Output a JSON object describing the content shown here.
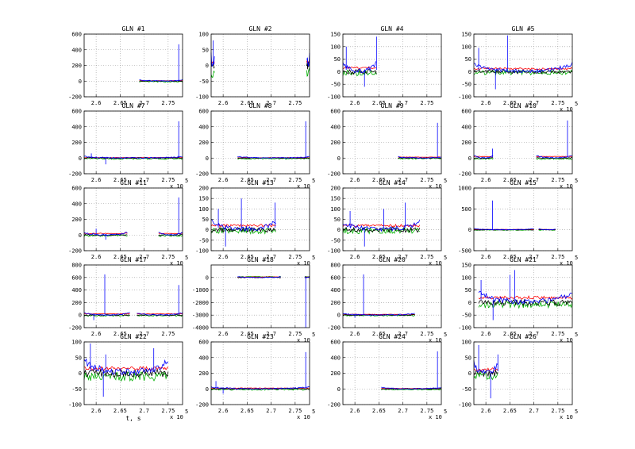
{
  "figure": {
    "xlim": [
      2.575,
      2.78
    ],
    "xticks": [
      "2.6",
      "2.65",
      "2.7",
      "2.75"
    ],
    "xtick_values": [
      2.6,
      2.65,
      2.7,
      2.75
    ],
    "multiplier_base": "x 10",
    "multiplier_exp": "5",
    "xlabel": "t, s",
    "colors": {
      "blue": "#0000ff",
      "red": "#ff0000",
      "green": "#00b000",
      "black": "#000000",
      "grid": "#999999"
    }
  },
  "chart_data": [
    {
      "type": "line",
      "title": "GLN #1",
      "ylim": [
        -200,
        600
      ],
      "yticks": [
        "600",
        "400",
        "200",
        "0",
        "-200"
      ],
      "ytick_values": [
        600,
        400,
        200,
        0,
        -200
      ],
      "segments": [
        [
          2.69,
          2.78
        ]
      ],
      "spikes": [
        {
          "x": 2.772,
          "y": 470
        }
      ],
      "amp": 25,
      "noise": 6,
      "red": 5,
      "green": -8,
      "xlabel": "",
      "show_mult": false
    },
    {
      "type": "line",
      "title": "GLN #2",
      "ylim": [
        -100,
        100
      ],
      "yticks": [
        "100",
        "50",
        "0",
        "-50",
        "-100"
      ],
      "ytick_values": [
        100,
        50,
        0,
        -50,
        -100
      ],
      "segments": [
        [
          2.575,
          2.582
        ],
        [
          2.774,
          2.78
        ]
      ],
      "spikes": [
        {
          "x": 2.579,
          "y": 80
        },
        {
          "x": 2.776,
          "y": 25
        }
      ],
      "amp": 40,
      "noise": 12,
      "red": 10,
      "green": -25,
      "xlabel": "",
      "show_mult": false
    },
    {
      "type": "line",
      "title": "GLN #4",
      "ylim": [
        -100,
        150
      ],
      "yticks": [
        "150",
        "100",
        "50",
        "0",
        "-50",
        "-100"
      ],
      "ytick_values": [
        150,
        100,
        50,
        0,
        -50,
        -100
      ],
      "segments": [
        [
          2.575,
          2.645
        ]
      ],
      "spikes": [
        {
          "x": 2.582,
          "y": 100
        },
        {
          "x": 2.62,
          "y": -60
        },
        {
          "x": 2.645,
          "y": 140
        }
      ],
      "amp": 45,
      "noise": 10,
      "red": 15,
      "green": -5,
      "xlabel": "",
      "show_mult": false
    },
    {
      "type": "line",
      "title": "GLN #5",
      "ylim": [
        -100,
        150
      ],
      "yticks": [
        "150",
        "100",
        "50",
        "0",
        "-50",
        "-100"
      ],
      "ytick_values": [
        150,
        100,
        50,
        0,
        -50,
        -100
      ],
      "segments": [
        [
          2.575,
          2.78
        ]
      ],
      "spikes": [
        {
          "x": 2.585,
          "y": 95
        },
        {
          "x": 2.62,
          "y": -70
        },
        {
          "x": 2.645,
          "y": 145
        }
      ],
      "amp": 40,
      "noise": 8,
      "red": 12,
      "green": -3,
      "xlabel": "",
      "show_mult": true
    },
    {
      "type": "line",
      "title": "GLN #7",
      "ylim": [
        -200,
        600
      ],
      "yticks": [
        "600",
        "400",
        "200",
        "0",
        "-200"
      ],
      "ytick_values": [
        600,
        400,
        200,
        0,
        -200
      ],
      "segments": [
        [
          2.575,
          2.78
        ]
      ],
      "spikes": [
        {
          "x": 2.59,
          "y": 60
        },
        {
          "x": 2.62,
          "y": -80
        },
        {
          "x": 2.772,
          "y": 470
        }
      ],
      "amp": 25,
      "noise": 8,
      "red": 6,
      "green": -8,
      "xlabel": "",
      "show_mult": true
    },
    {
      "type": "line",
      "title": "GLN #8",
      "ylim": [
        -200,
        600
      ],
      "yticks": [
        "600",
        "400",
        "200",
        "0",
        "-200"
      ],
      "ytick_values": [
        600,
        400,
        200,
        0,
        -200
      ],
      "segments": [
        [
          2.63,
          2.78
        ]
      ],
      "spikes": [
        {
          "x": 2.772,
          "y": 470
        }
      ],
      "amp": 25,
      "noise": 6,
      "red": 5,
      "green": -8,
      "xlabel": "",
      "show_mult": true
    },
    {
      "type": "line",
      "title": "GLN #9",
      "ylim": [
        -200,
        600
      ],
      "yticks": [
        "600",
        "400",
        "200",
        "0",
        "-200"
      ],
      "ytick_values": [
        600,
        400,
        200,
        0,
        -200
      ],
      "segments": [
        [
          2.69,
          2.78
        ]
      ],
      "spikes": [
        {
          "x": 2.772,
          "y": 450
        }
      ],
      "amp": 20,
      "noise": 6,
      "red": 12,
      "green": -6,
      "xlabel": "",
      "show_mult": true
    },
    {
      "type": "line",
      "title": "GLN #10",
      "ylim": [
        -200,
        600
      ],
      "yticks": [
        "600",
        "400",
        "200",
        "0",
        "-200"
      ],
      "ytick_values": [
        600,
        400,
        200,
        0,
        -200
      ],
      "segments": [
        [
          2.575,
          2.615
        ],
        [
          2.705,
          2.78
        ]
      ],
      "spikes": [
        {
          "x": 2.614,
          "y": 120
        },
        {
          "x": 2.77,
          "y": 480
        }
      ],
      "amp": 40,
      "noise": 8,
      "red": 20,
      "green": -10,
      "xlabel": "",
      "show_mult": true
    },
    {
      "type": "line",
      "title": "GLN #11",
      "ylim": [
        -200,
        600
      ],
      "yticks": [
        "600",
        "400",
        "200",
        "0",
        "-200"
      ],
      "ytick_values": [
        600,
        400,
        200,
        0,
        -200
      ],
      "segments": [
        [
          2.575,
          2.665
        ],
        [
          2.73,
          2.78
        ]
      ],
      "spikes": [
        {
          "x": 2.6,
          "y": 80
        },
        {
          "x": 2.62,
          "y": -60
        },
        {
          "x": 2.772,
          "y": 480
        }
      ],
      "amp": 40,
      "noise": 10,
      "red": 20,
      "green": -8,
      "xlabel": "",
      "show_mult": true
    },
    {
      "type": "line",
      "title": "GLN #13",
      "ylim": [
        -100,
        200
      ],
      "yticks": [
        "200",
        "150",
        "100",
        "50",
        "0",
        "-50",
        "-100"
      ],
      "ytick_values": [
        200,
        150,
        100,
        50,
        0,
        -50,
        -100
      ],
      "segments": [
        [
          2.575,
          2.71
        ]
      ],
      "spikes": [
        {
          "x": 2.59,
          "y": 100
        },
        {
          "x": 2.605,
          "y": -80
        },
        {
          "x": 2.638,
          "y": 150
        },
        {
          "x": 2.708,
          "y": 130
        }
      ],
      "amp": 50,
      "noise": 12,
      "red": 20,
      "green": -5,
      "xlabel": "",
      "show_mult": true
    },
    {
      "type": "line",
      "title": "GLN #14",
      "ylim": [
        -100,
        200
      ],
      "yticks": [
        "200",
        "150",
        "100",
        "50",
        "0",
        "-50",
        "-100"
      ],
      "ytick_values": [
        200,
        150,
        100,
        50,
        0,
        -50,
        -100
      ],
      "segments": [
        [
          2.575,
          2.735
        ]
      ],
      "spikes": [
        {
          "x": 2.59,
          "y": 90
        },
        {
          "x": 2.62,
          "y": -80
        },
        {
          "x": 2.66,
          "y": 100
        },
        {
          "x": 2.705,
          "y": 130
        }
      ],
      "amp": 45,
      "noise": 12,
      "red": 20,
      "green": -5,
      "xlabel": "",
      "show_mult": true
    },
    {
      "type": "line",
      "title": "GLN #15",
      "ylim": [
        -500,
        1000
      ],
      "yticks": [
        "1000",
        "500",
        "0",
        "-500"
      ],
      "ytick_values": [
        1000,
        500,
        0,
        -500
      ],
      "segments": [
        [
          2.575,
          2.7
        ],
        [
          2.71,
          2.745
        ]
      ],
      "spikes": [
        {
          "x": 2.614,
          "y": 700
        }
      ],
      "amp": 30,
      "noise": 8,
      "red": 8,
      "green": -5,
      "xlabel": "",
      "show_mult": true
    },
    {
      "type": "line",
      "title": "GLN #17",
      "ylim": [
        -200,
        800
      ],
      "yticks": [
        "800",
        "600",
        "400",
        "200",
        "0",
        "-200"
      ],
      "ytick_values": [
        800,
        600,
        400,
        200,
        0,
        -200
      ],
      "segments": [
        [
          2.575,
          2.67
        ],
        [
          2.685,
          2.78
        ]
      ],
      "spikes": [
        {
          "x": 2.618,
          "y": 650
        },
        {
          "x": 2.595,
          "y": -80
        },
        {
          "x": 2.772,
          "y": 480
        }
      ],
      "amp": 45,
      "noise": 10,
      "red": 20,
      "green": -8,
      "xlabel": "",
      "show_mult": false
    },
    {
      "type": "line",
      "title": "GLN #18",
      "ylim": [
        -4000,
        1000
      ],
      "yticks": [
        "0",
        "-1000",
        "-2000",
        "-3000",
        "-4000"
      ],
      "ytick_values": [
        0,
        -1000,
        -2000,
        -3000,
        -4000
      ],
      "segments": [
        [
          2.63,
          2.72
        ],
        [
          2.77,
          2.78
        ]
      ],
      "spikes": [
        {
          "x": 2.772,
          "y": -4000
        }
      ],
      "amp": 80,
      "noise": 30,
      "red": 40,
      "green": 60,
      "xlabel": "",
      "show_mult": true
    },
    {
      "type": "line",
      "title": "GLN #20",
      "ylim": [
        -200,
        800
      ],
      "yticks": [
        "800",
        "600",
        "400",
        "200",
        "0",
        "-200"
      ],
      "ytick_values": [
        800,
        600,
        400,
        200,
        0,
        -200
      ],
      "segments": [
        [
          2.575,
          2.725
        ]
      ],
      "spikes": [
        {
          "x": 2.618,
          "y": 650
        },
        {
          "x": 2.6,
          "y": -40
        }
      ],
      "amp": 30,
      "noise": 8,
      "red": 12,
      "green": -6,
      "xlabel": "",
      "show_mult": true
    },
    {
      "type": "line",
      "title": "GLN #21",
      "ylim": [
        -100,
        150
      ],
      "yticks": [
        "150",
        "100",
        "50",
        "0",
        "-50",
        "-100"
      ],
      "ytick_values": [
        150,
        100,
        50,
        0,
        -50,
        -100
      ],
      "segments": [
        [
          2.585,
          2.78
        ]
      ],
      "spikes": [
        {
          "x": 2.59,
          "y": 90
        },
        {
          "x": 2.615,
          "y": -70
        },
        {
          "x": 2.65,
          "y": 110
        },
        {
          "x": 2.66,
          "y": 130
        }
      ],
      "amp": 50,
      "noise": 12,
      "red": 20,
      "green": -8,
      "xlabel": "",
      "show_mult": true
    },
    {
      "type": "line",
      "title": "GLN #22",
      "ylim": [
        -100,
        100
      ],
      "yticks": [
        "100",
        "50",
        "0",
        "-50",
        "-100"
      ],
      "ytick_values": [
        100,
        50,
        0,
        -50,
        -100
      ],
      "segments": [
        [
          2.575,
          2.75
        ]
      ],
      "spikes": [
        {
          "x": 2.588,
          "y": 95
        },
        {
          "x": 2.615,
          "y": -75
        },
        {
          "x": 2.62,
          "y": 60
        },
        {
          "x": 2.72,
          "y": 80
        }
      ],
      "amp": 50,
      "noise": 12,
      "red": 15,
      "green": -10,
      "xlabel": "t, s",
      "show_mult": true
    },
    {
      "type": "line",
      "title": "GLN #23",
      "ylim": [
        -200,
        600
      ],
      "yticks": [
        "600",
        "400",
        "200",
        "0",
        "-200"
      ],
      "ytick_values": [
        600,
        400,
        200,
        0,
        -200
      ],
      "segments": [
        [
          2.575,
          2.78
        ]
      ],
      "spikes": [
        {
          "x": 2.585,
          "y": 100
        },
        {
          "x": 2.6,
          "y": -60
        },
        {
          "x": 2.772,
          "y": 470
        }
      ],
      "amp": 30,
      "noise": 8,
      "red": 10,
      "green": -8,
      "xlabel": "",
      "show_mult": true
    },
    {
      "type": "line",
      "title": "GLN #24",
      "ylim": [
        -200,
        600
      ],
      "yticks": [
        "600",
        "400",
        "200",
        "0",
        "-200"
      ],
      "ytick_values": [
        600,
        400,
        200,
        0,
        -200
      ],
      "segments": [
        [
          2.655,
          2.78
        ]
      ],
      "spikes": [
        {
          "x": 2.772,
          "y": 480
        }
      ],
      "amp": 25,
      "noise": 6,
      "red": 6,
      "green": -8,
      "xlabel": "",
      "show_mult": true
    },
    {
      "type": "line",
      "title": "GLN #26",
      "ylim": [
        -100,
        100
      ],
      "yticks": [
        "100",
        "50",
        "0",
        "-50",
        "-100"
      ],
      "ytick_values": [
        100,
        50,
        0,
        -50,
        -100
      ],
      "segments": [
        [
          2.575,
          2.625
        ]
      ],
      "spikes": [
        {
          "x": 2.585,
          "y": 90
        },
        {
          "x": 2.61,
          "y": -80
        },
        {
          "x": 2.625,
          "y": 60
        }
      ],
      "amp": 40,
      "noise": 10,
      "red": 12,
      "green": -8,
      "xlabel": "",
      "show_mult": true
    }
  ]
}
